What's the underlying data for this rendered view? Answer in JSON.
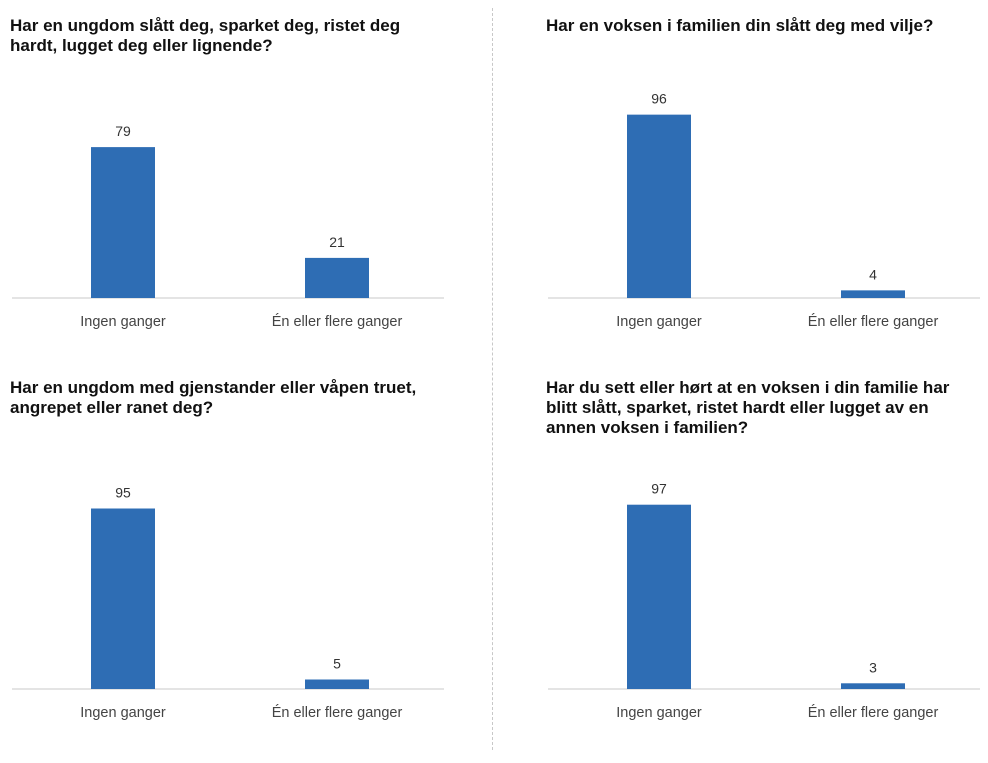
{
  "chart_data": [
    {
      "type": "bar",
      "title": "Har en ungdom slått deg, sparket deg, ristet deg hardt, lugget deg eller lignende?",
      "categories": [
        "Ingen ganger",
        "Én eller flere ganger"
      ],
      "values": [
        79,
        21
      ],
      "ylim": [
        0,
        100
      ],
      "grid": false,
      "legend": "none"
    },
    {
      "type": "bar",
      "title": "Har en voksen i familien din slått deg med vilje?",
      "categories": [
        "Ingen ganger",
        "Én eller flere ganger"
      ],
      "values": [
        96,
        4
      ],
      "ylim": [
        0,
        100
      ],
      "grid": false,
      "legend": "none"
    },
    {
      "type": "bar",
      "title": "Har en ungdom med gjenstander eller våpen truet, angrepet eller ranet deg?",
      "categories": [
        "Ingen ganger",
        "Én eller flere ganger"
      ],
      "values": [
        95,
        5
      ],
      "ylim": [
        0,
        100
      ],
      "grid": false,
      "legend": "none"
    },
    {
      "type": "bar",
      "title": "Har du sett eller hørt at en voksen i din familie har blitt slått, sparket, ristet hardt eller lugget av en annen voksen i familien?",
      "categories": [
        "Ingen ganger",
        "Én eller flere ganger"
      ],
      "values": [
        97,
        3
      ],
      "ylim": [
        0,
        100
      ],
      "grid": false,
      "legend": "none"
    }
  ],
  "colors": {
    "bar": "#2e6db4",
    "baseline": "#c9c9c9",
    "divider": "#c8c8c8"
  }
}
